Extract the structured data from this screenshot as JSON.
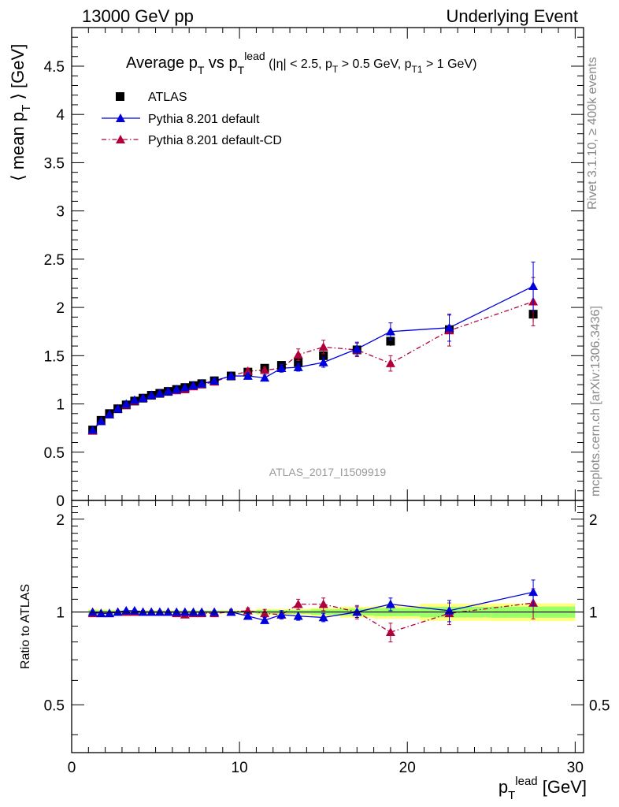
{
  "header": {
    "left": "13000 GeV pp",
    "right": "Underlying Event"
  },
  "side_labels": {
    "rivet": "Rivet 3.1.10, ≥ 400k events",
    "mcplots": "mcplots.cern.ch [arXiv:1306.3436]"
  },
  "colors": {
    "atlas": "#000000",
    "default": "#0000dd",
    "cd": "#b0003c",
    "band_outer": "#ffff80",
    "band_inner": "#9bff6a"
  },
  "chart_data": [
    {
      "type": "scatter",
      "title": "Average p_T vs p_T^lead (|η| < 2.5, p_T > 0.5 GeV, p_T1 > 1 GeV)",
      "xlabel": "p_T^lead [GeV]",
      "ylabel": "⟨ mean p_T ⟩ [GeV]",
      "xlim": [
        0,
        30.5
      ],
      "ylim": [
        0,
        4.9
      ],
      "yticks": [
        0,
        0.5,
        1,
        1.5,
        2,
        2.5,
        3,
        3.5,
        4,
        4.5
      ],
      "watermark": "ATLAS_2017_I1509919",
      "legend_position": "top-left",
      "x": [
        1.25,
        1.75,
        2.25,
        2.75,
        3.25,
        3.75,
        4.25,
        4.75,
        5.25,
        5.75,
        6.25,
        6.75,
        7.25,
        7.75,
        8.5,
        9.5,
        10.5,
        11.5,
        12.5,
        13.5,
        15.0,
        17.0,
        19.0,
        22.5,
        27.5
      ],
      "series": [
        {
          "name": "ATLAS",
          "style": "marker",
          "values": [
            0.73,
            0.83,
            0.9,
            0.95,
            0.99,
            1.03,
            1.06,
            1.09,
            1.11,
            1.13,
            1.15,
            1.17,
            1.19,
            1.21,
            1.24,
            1.29,
            1.33,
            1.37,
            1.4,
            1.43,
            1.5,
            1.56,
            1.65,
            1.77,
            1.93
          ],
          "errors": [
            0.01,
            0.01,
            0.01,
            0.01,
            0.01,
            0.01,
            0.01,
            0.01,
            0.01,
            0.01,
            0.01,
            0.01,
            0.01,
            0.01,
            0.01,
            0.01,
            0.01,
            0.02,
            0.02,
            0.02,
            0.03,
            0.04,
            0.05,
            0.07,
            0.08
          ]
        },
        {
          "name": "Pythia 8.201 default",
          "style": "solid",
          "values": [
            0.73,
            0.82,
            0.89,
            0.95,
            1.0,
            1.04,
            1.06,
            1.09,
            1.11,
            1.13,
            1.15,
            1.17,
            1.19,
            1.21,
            1.24,
            1.29,
            1.29,
            1.27,
            1.37,
            1.38,
            1.43,
            1.57,
            1.75,
            1.79,
            2.22
          ],
          "errors": [
            0.01,
            0.01,
            0.01,
            0.01,
            0.01,
            0.01,
            0.01,
            0.01,
            0.01,
            0.01,
            0.01,
            0.01,
            0.01,
            0.01,
            0.02,
            0.02,
            0.03,
            0.03,
            0.04,
            0.04,
            0.05,
            0.07,
            0.09,
            0.14,
            0.25
          ]
        },
        {
          "name": "Pythia 8.201 default-CD",
          "style": "dashdot",
          "values": [
            0.72,
            0.82,
            0.89,
            0.95,
            0.99,
            1.03,
            1.06,
            1.09,
            1.11,
            1.13,
            1.14,
            1.15,
            1.18,
            1.2,
            1.23,
            1.29,
            1.34,
            1.35,
            1.37,
            1.51,
            1.59,
            1.56,
            1.42,
            1.76,
            2.06
          ],
          "errors": [
            0.01,
            0.01,
            0.01,
            0.01,
            0.01,
            0.01,
            0.01,
            0.01,
            0.01,
            0.01,
            0.01,
            0.01,
            0.01,
            0.01,
            0.02,
            0.02,
            0.03,
            0.03,
            0.04,
            0.06,
            0.07,
            0.07,
            0.08,
            0.16,
            0.25
          ]
        }
      ]
    },
    {
      "type": "scatter",
      "ylabel": "Ratio to ATLAS",
      "xlabel": "p_T^lead [GeV]",
      "xlim": [
        0,
        30.5
      ],
      "ylim": [
        0.35,
        2.3
      ],
      "scale": "log",
      "yticks": [
        0.5,
        1,
        2
      ],
      "xticks": [
        0,
        10,
        20,
        30
      ],
      "series": [
        {
          "name": "Pythia 8.201 default",
          "values": [
            1.0,
            0.99,
            0.99,
            1.0,
            1.01,
            1.01,
            1.0,
            1.0,
            1.0,
            1.0,
            1.0,
            1.0,
            1.0,
            1.0,
            1.0,
            1.0,
            0.97,
            0.94,
            0.98,
            0.97,
            0.96,
            1.0,
            1.06,
            1.01,
            1.16
          ],
          "errors": [
            0.01,
            0.01,
            0.01,
            0.01,
            0.01,
            0.01,
            0.01,
            0.01,
            0.01,
            0.01,
            0.01,
            0.01,
            0.01,
            0.01,
            0.01,
            0.01,
            0.02,
            0.02,
            0.03,
            0.03,
            0.03,
            0.04,
            0.05,
            0.08,
            0.11
          ]
        },
        {
          "name": "Pythia 8.201 default-CD",
          "values": [
            0.99,
            0.99,
            0.99,
            1.0,
            1.0,
            1.0,
            1.0,
            1.0,
            1.0,
            1.0,
            0.99,
            0.98,
            0.99,
            0.99,
            0.99,
            1.0,
            1.01,
            0.99,
            0.98,
            1.06,
            1.06,
            1.0,
            0.86,
            0.99,
            1.07
          ],
          "errors": [
            0.01,
            0.01,
            0.01,
            0.01,
            0.01,
            0.01,
            0.01,
            0.01,
            0.01,
            0.01,
            0.01,
            0.01,
            0.01,
            0.01,
            0.01,
            0.02,
            0.02,
            0.03,
            0.03,
            0.04,
            0.05,
            0.05,
            0.06,
            0.08,
            0.12
          ]
        }
      ]
    }
  ]
}
